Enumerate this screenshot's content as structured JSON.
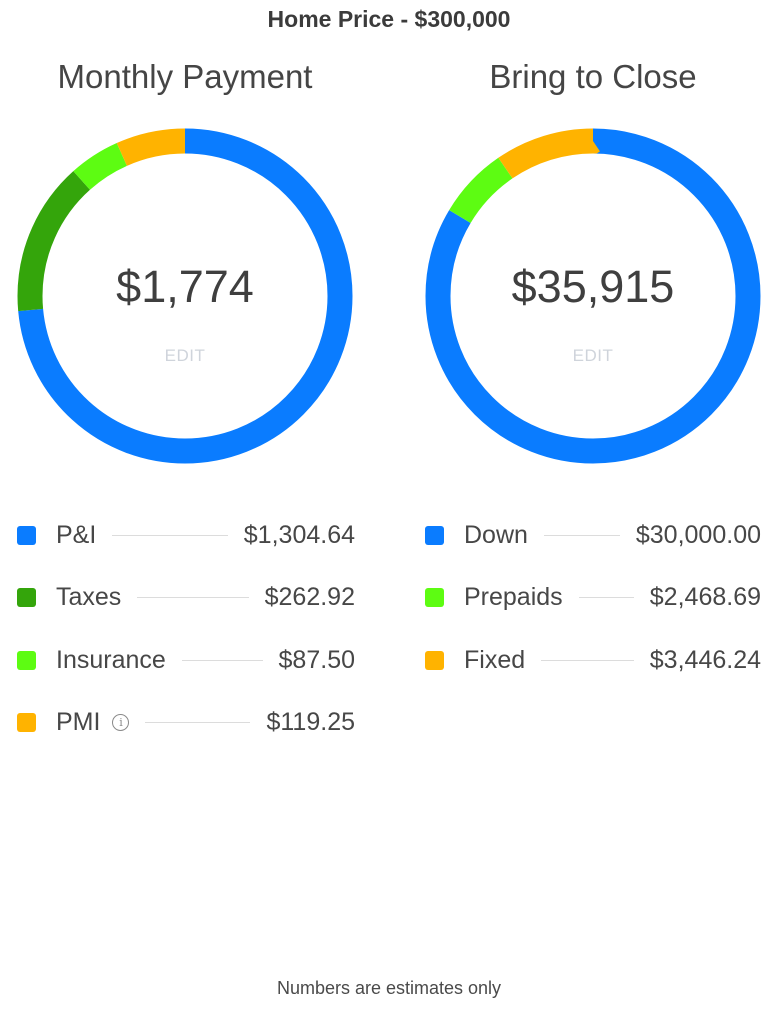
{
  "header": {
    "title": "Home Price - $300,000"
  },
  "colors": {
    "blue": "#0a7cff",
    "dark_green": "#34a50b",
    "light_green": "#5dfc12",
    "orange": "#ffb300"
  },
  "monthly": {
    "title": "Monthly Payment",
    "total": "$1,774",
    "edit_label": "EDIT",
    "items": [
      {
        "label": "P&I",
        "value": "$1,304.64",
        "amount": 1304.64,
        "color": "#0a7cff",
        "info": false
      },
      {
        "label": "Taxes",
        "value": "$262.92",
        "amount": 262.92,
        "color": "#34a50b",
        "info": false
      },
      {
        "label": "Insurance",
        "value": "$87.50",
        "amount": 87.5,
        "color": "#5dfc12",
        "info": false
      },
      {
        "label": "PMI",
        "value": "$119.25",
        "amount": 119.25,
        "color": "#ffb300",
        "info": true
      }
    ]
  },
  "close": {
    "title": "Bring to Close",
    "total": "$35,915",
    "edit_label": "EDIT",
    "items": [
      {
        "label": "Down",
        "value": "$30,000.00",
        "amount": 30000.0,
        "color": "#0a7cff",
        "info": false
      },
      {
        "label": "Prepaids",
        "value": "$2,468.69",
        "amount": 2468.69,
        "color": "#5dfc12",
        "info": false
      },
      {
        "label": "Fixed",
        "value": "$3,446.24",
        "amount": 3446.24,
        "color": "#ffb300",
        "info": false
      }
    ]
  },
  "info_icon_glyph": "i",
  "footer": {
    "note": "Numbers are estimates only"
  }
}
